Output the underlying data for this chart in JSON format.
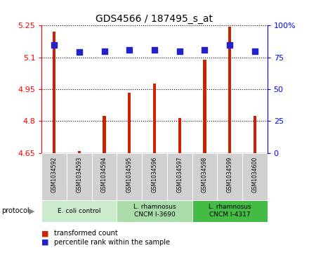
{
  "title": "GDS4566 / 187495_s_at",
  "samples": [
    "GSM1034592",
    "GSM1034593",
    "GSM1034594",
    "GSM1034595",
    "GSM1034596",
    "GSM1034597",
    "GSM1034598",
    "GSM1034599",
    "GSM1034600"
  ],
  "transformed_count": [
    5.22,
    4.658,
    4.825,
    4.935,
    4.975,
    4.815,
    5.09,
    5.245,
    4.825
  ],
  "percentile_rank": [
    85,
    79,
    80,
    81,
    81,
    80,
    81,
    85,
    80
  ],
  "ylim_left": [
    4.65,
    5.25
  ],
  "ylim_right": [
    0,
    100
  ],
  "yticks_left": [
    4.65,
    4.8,
    4.95,
    5.1,
    5.25
  ],
  "yticks_right": [
    0,
    25,
    50,
    75,
    100
  ],
  "protocol_groups": [
    {
      "label": "E. coli control",
      "start": 0,
      "end": 3,
      "color": "#cceacc"
    },
    {
      "label": "L. rhamnosus\nCNCM I-3690",
      "start": 3,
      "end": 6,
      "color": "#aadcaa"
    },
    {
      "label": "L. rhamnosus\nCNCM I-4317",
      "start": 6,
      "end": 9,
      "color": "#44bb44"
    }
  ],
  "bar_color": "#cc2200",
  "dot_color": "#2222cc",
  "bar_width": 0.12,
  "dot_size": 28,
  "label_red": "transformed count",
  "label_blue": "percentile rank within the sample"
}
